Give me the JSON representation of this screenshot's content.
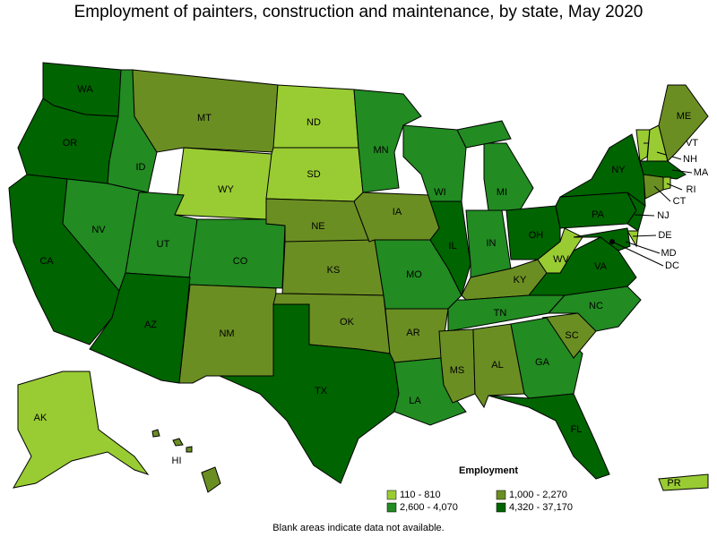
{
  "title": "Employment of painters, construction and maintenance, by state, May 2020",
  "legend": {
    "title": "Employment",
    "items": [
      {
        "label": "110 - 810",
        "color": "#99cc33"
      },
      {
        "label": "1,000 - 2,270",
        "color": "#6b8e23"
      },
      {
        "label": "2,600 - 4,070",
        "color": "#228b22"
      },
      {
        "label": "4,320 - 37,170",
        "color": "#006400"
      }
    ]
  },
  "states": [
    {
      "label": "WA",
      "employment": "4,320 - 37,170"
    },
    {
      "label": "OR",
      "employment": "4,320 - 37,170"
    },
    {
      "label": "CA",
      "employment": "4,320 - 37,170"
    },
    {
      "label": "NV",
      "employment": "2,600 - 4,070"
    },
    {
      "label": "ID",
      "employment": "2,600 - 4,070"
    },
    {
      "label": "MT",
      "employment": "1,000 - 2,270"
    },
    {
      "label": "WY",
      "employment": "110 - 810"
    },
    {
      "label": "UT",
      "employment": "2,600 - 4,070"
    },
    {
      "label": "CO",
      "employment": "2,600 - 4,070"
    },
    {
      "label": "AZ",
      "employment": "4,320 - 37,170"
    },
    {
      "label": "NM",
      "employment": "1,000 - 2,270"
    },
    {
      "label": "ND",
      "employment": "110 - 810"
    },
    {
      "label": "SD",
      "employment": "110 - 810"
    },
    {
      "label": "NE",
      "employment": "1,000 - 2,270"
    },
    {
      "label": "KS",
      "employment": "1,000 - 2,270"
    },
    {
      "label": "OK",
      "employment": "1,000 - 2,270"
    },
    {
      "label": "TX",
      "employment": "4,320 - 37,170"
    },
    {
      "label": "MN",
      "employment": "2,600 - 4,070"
    },
    {
      "label": "IA",
      "employment": "1,000 - 2,270"
    },
    {
      "label": "MO",
      "employment": "2,600 - 4,070"
    },
    {
      "label": "AR",
      "employment": "1,000 - 2,270"
    },
    {
      "label": "LA",
      "employment": "2,600 - 4,070"
    },
    {
      "label": "WI",
      "employment": "2,600 - 4,070"
    },
    {
      "label": "IL",
      "employment": "4,320 - 37,170"
    },
    {
      "label": "MI",
      "employment": "2,600 - 4,070"
    },
    {
      "label": "IN",
      "employment": "2,600 - 4,070"
    },
    {
      "label": "OH",
      "employment": "4,320 - 37,170"
    },
    {
      "label": "KY",
      "employment": "1,000 - 2,270"
    },
    {
      "label": "TN",
      "employment": "2,600 - 4,070"
    },
    {
      "label": "MS",
      "employment": "1,000 - 2,270"
    },
    {
      "label": "AL",
      "employment": "1,000 - 2,270"
    },
    {
      "label": "GA",
      "employment": "2,600 - 4,070"
    },
    {
      "label": "FL",
      "employment": "4,320 - 37,170"
    },
    {
      "label": "SC",
      "employment": "1,000 - 2,270"
    },
    {
      "label": "NC",
      "employment": "2,600 - 4,070"
    },
    {
      "label": "VA",
      "employment": "4,320 - 37,170"
    },
    {
      "label": "WV",
      "employment": "110 - 810"
    },
    {
      "label": "PA",
      "employment": "4,320 - 37,170"
    },
    {
      "label": "NY",
      "employment": "4,320 - 37,170"
    },
    {
      "label": "NJ",
      "employment": "4,320 - 37,170"
    },
    {
      "label": "DE",
      "employment": "110 - 810"
    },
    {
      "label": "MD",
      "employment": "4,320 - 37,170"
    },
    {
      "label": "DC"
    },
    {
      "label": "VT",
      "employment": "110 - 810"
    },
    {
      "label": "NH",
      "employment": "110 - 810"
    },
    {
      "label": "ME",
      "employment": "1,000 - 2,270"
    },
    {
      "label": "MA",
      "employment": "4,320 - 37,170"
    },
    {
      "label": "CT",
      "employment": "1,000 - 2,270"
    },
    {
      "label": "RI",
      "employment": "110 - 810"
    },
    {
      "label": "AK",
      "employment": "110 - 810"
    },
    {
      "label": "HI",
      "employment": "1,000 - 2,270"
    },
    {
      "label": "PR",
      "employment": "110 - 810"
    }
  ],
  "note": "Blank areas indicate data not available."
}
